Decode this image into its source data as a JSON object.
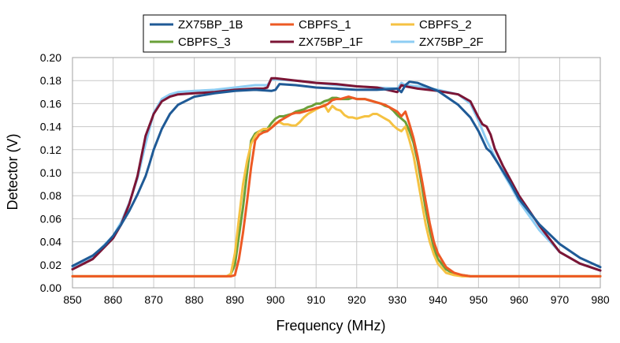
{
  "chart_data": {
    "type": "line",
    "title": "",
    "xlabel": "Frequency (MHz)",
    "ylabel": "Detector (V)",
    "xlim": [
      850,
      980
    ],
    "ylim": [
      0,
      0.2
    ],
    "grid": true,
    "legend_position": "top-center",
    "x_ticks": [
      "850",
      "860",
      "870",
      "880",
      "890",
      "900",
      "910",
      "920",
      "930",
      "940",
      "950",
      "960",
      "970",
      "980"
    ],
    "y_ticks": [
      "0.00",
      "0.02",
      "0.04",
      "0.06",
      "0.08",
      "0.10",
      "0.12",
      "0.14",
      "0.16",
      "0.18",
      "0.20"
    ],
    "series": [
      {
        "name": "ZX75BP_2F",
        "color": "#8ecdf3",
        "x": [
          850,
          855,
          860,
          862,
          864,
          866,
          868,
          870,
          872,
          874,
          876,
          880,
          885,
          890,
          895,
          898,
          899,
          900,
          905,
          910,
          915,
          920,
          925,
          930,
          931,
          932,
          935,
          940,
          945,
          948,
          950,
          952,
          954,
          956,
          958,
          960,
          965,
          970,
          975,
          980
        ],
        "y": [
          0.017,
          0.027,
          0.045,
          0.057,
          0.074,
          0.095,
          0.125,
          0.152,
          0.164,
          0.168,
          0.17,
          0.171,
          0.172,
          0.174,
          0.176,
          0.176,
          0.181,
          0.181,
          0.18,
          0.178,
          0.176,
          0.175,
          0.174,
          0.173,
          0.178,
          0.176,
          0.175,
          0.172,
          0.168,
          0.16,
          0.145,
          0.128,
          0.114,
          0.1,
          0.088,
          0.075,
          0.05,
          0.031,
          0.021,
          0.015
        ]
      },
      {
        "name": "ZX75BP_1F",
        "color": "#7b1535",
        "x": [
          850,
          855,
          860,
          862,
          864,
          866,
          868,
          870,
          872,
          874,
          876,
          880,
          885,
          890,
          895,
          897,
          898,
          899,
          900,
          905,
          910,
          915,
          920,
          925,
          930,
          931,
          932,
          935,
          940,
          945,
          948,
          950,
          951,
          952,
          953,
          954,
          956,
          958,
          960,
          965,
          970,
          975,
          980
        ],
        "y": [
          0.016,
          0.025,
          0.043,
          0.055,
          0.073,
          0.097,
          0.132,
          0.151,
          0.162,
          0.166,
          0.168,
          0.169,
          0.17,
          0.172,
          0.173,
          0.173,
          0.174,
          0.182,
          0.182,
          0.18,
          0.178,
          0.177,
          0.175,
          0.174,
          0.17,
          0.176,
          0.175,
          0.173,
          0.171,
          0.168,
          0.162,
          0.148,
          0.142,
          0.14,
          0.133,
          0.121,
          0.106,
          0.093,
          0.08,
          0.054,
          0.031,
          0.021,
          0.015
        ]
      },
      {
        "name": "ZX75BP_1B",
        "color": "#1f5a96",
        "x": [
          850,
          855,
          858,
          860,
          862,
          864,
          866,
          868,
          869,
          870,
          872,
          874,
          876,
          880,
          885,
          890,
          895,
          899,
          900,
          901,
          905,
          910,
          915,
          920,
          925,
          930,
          931,
          932,
          933,
          935,
          940,
          945,
          948,
          950,
          952,
          953,
          955,
          958,
          960,
          965,
          970,
          975,
          980
        ],
        "y": [
          0.019,
          0.028,
          0.037,
          0.045,
          0.055,
          0.067,
          0.081,
          0.097,
          0.108,
          0.12,
          0.138,
          0.151,
          0.159,
          0.166,
          0.169,
          0.171,
          0.172,
          0.171,
          0.172,
          0.177,
          0.176,
          0.174,
          0.173,
          0.172,
          0.172,
          0.173,
          0.17,
          0.176,
          0.179,
          0.178,
          0.171,
          0.159,
          0.148,
          0.136,
          0.121,
          0.118,
          0.107,
          0.09,
          0.077,
          0.055,
          0.038,
          0.026,
          0.018
        ]
      },
      {
        "name": "CBPFS_3",
        "color": "#6aa039",
        "x": [
          850,
          888,
          889,
          890,
          891,
          892,
          893,
          894,
          895,
          896,
          897,
          898,
          899,
          900,
          901,
          902,
          903,
          904,
          905,
          906,
          907,
          908,
          909,
          910,
          911,
          912,
          913,
          914,
          915,
          916,
          917,
          918,
          919,
          920,
          921,
          922,
          923,
          924,
          925,
          926,
          927,
          928,
          929,
          930,
          931,
          932,
          933,
          934,
          935,
          936,
          937,
          938,
          939,
          940,
          942,
          944,
          946,
          948,
          950,
          955,
          960,
          970,
          980
        ],
        "y": [
          0.01,
          0.01,
          0.012,
          0.02,
          0.045,
          0.07,
          0.1,
          0.128,
          0.134,
          0.136,
          0.137,
          0.138,
          0.143,
          0.147,
          0.149,
          0.149,
          0.15,
          0.151,
          0.153,
          0.154,
          0.155,
          0.157,
          0.158,
          0.16,
          0.16,
          0.162,
          0.163,
          0.165,
          0.165,
          0.164,
          0.164,
          0.164,
          0.165,
          0.164,
          0.164,
          0.164,
          0.163,
          0.162,
          0.161,
          0.16,
          0.158,
          0.157,
          0.154,
          0.15,
          0.147,
          0.144,
          0.136,
          0.126,
          0.11,
          0.09,
          0.068,
          0.05,
          0.035,
          0.025,
          0.016,
          0.012,
          0.011,
          0.01,
          0.01,
          0.01,
          0.01,
          0.01,
          0.01
        ]
      },
      {
        "name": "CBPFS_2",
        "color": "#f5c242",
        "x": [
          850,
          888,
          889,
          890,
          891,
          892,
          893,
          894,
          895,
          896,
          897,
          898,
          899,
          900,
          901,
          902,
          903,
          904,
          905,
          906,
          907,
          908,
          909,
          910,
          911,
          912,
          913,
          914,
          915,
          916,
          917,
          918,
          919,
          920,
          921,
          922,
          923,
          924,
          925,
          926,
          927,
          928,
          929,
          930,
          931,
          932,
          933,
          934,
          935,
          936,
          937,
          938,
          939,
          940,
          942,
          944,
          946,
          948,
          950,
          955,
          960,
          970,
          980
        ],
        "y": [
          0.01,
          0.01,
          0.012,
          0.03,
          0.06,
          0.09,
          0.11,
          0.125,
          0.132,
          0.136,
          0.138,
          0.138,
          0.139,
          0.143,
          0.144,
          0.142,
          0.142,
          0.141,
          0.141,
          0.144,
          0.148,
          0.151,
          0.153,
          0.155,
          0.157,
          0.159,
          0.153,
          0.158,
          0.155,
          0.154,
          0.15,
          0.148,
          0.148,
          0.147,
          0.148,
          0.149,
          0.149,
          0.151,
          0.151,
          0.149,
          0.147,
          0.145,
          0.141,
          0.138,
          0.136,
          0.14,
          0.128,
          0.115,
          0.095,
          0.075,
          0.055,
          0.04,
          0.029,
          0.021,
          0.013,
          0.011,
          0.01,
          0.01,
          0.01,
          0.01,
          0.01,
          0.01,
          0.01
        ]
      },
      {
        "name": "CBPFS_1",
        "color": "#ed5a24",
        "x": [
          850,
          888,
          889,
          890,
          891,
          892,
          893,
          894,
          895,
          896,
          897,
          898,
          899,
          900,
          901,
          902,
          903,
          904,
          905,
          906,
          907,
          908,
          909,
          910,
          911,
          912,
          913,
          914,
          915,
          916,
          917,
          918,
          919,
          920,
          921,
          922,
          923,
          924,
          925,
          926,
          927,
          928,
          929,
          930,
          931,
          932,
          933,
          934,
          935,
          936,
          937,
          938,
          939,
          940,
          942,
          944,
          946,
          948,
          950,
          955,
          960,
          970,
          980
        ],
        "y": [
          0.01,
          0.01,
          0.01,
          0.011,
          0.025,
          0.048,
          0.075,
          0.105,
          0.128,
          0.133,
          0.135,
          0.136,
          0.139,
          0.142,
          0.145,
          0.147,
          0.149,
          0.151,
          0.152,
          0.152,
          0.153,
          0.154,
          0.155,
          0.156,
          0.157,
          0.158,
          0.16,
          0.163,
          0.164,
          0.164,
          0.165,
          0.166,
          0.165,
          0.164,
          0.164,
          0.164,
          0.163,
          0.162,
          0.161,
          0.16,
          0.159,
          0.157,
          0.155,
          0.153,
          0.149,
          0.153,
          0.142,
          0.13,
          0.114,
          0.095,
          0.075,
          0.056,
          0.04,
          0.03,
          0.018,
          0.013,
          0.011,
          0.01,
          0.01,
          0.01,
          0.01,
          0.01,
          0.01
        ]
      }
    ],
    "legend_order": [
      "ZX75BP_1B",
      "CBPFS_1",
      "CBPFS_2",
      "CBPFS_3",
      "ZX75BP_1F",
      "ZX75BP_2F"
    ]
  }
}
